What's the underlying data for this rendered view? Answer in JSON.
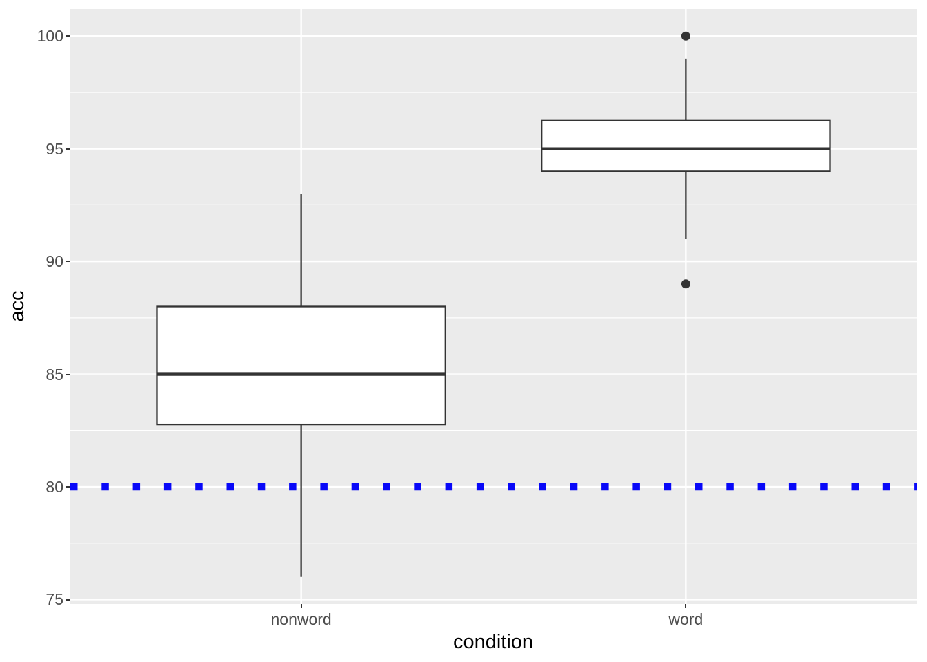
{
  "chart_data": {
    "type": "boxplot",
    "title": "",
    "xlabel": "condition",
    "ylabel": "acc",
    "categories": [
      "nonword",
      "word"
    ],
    "y_ticks": [
      75,
      80,
      85,
      90,
      95,
      100
    ],
    "y_minor_gridlines": [
      77.5,
      82.5,
      87.5,
      92.5,
      97.5
    ],
    "ylim": [
      74.8,
      101.2
    ],
    "grid": "horizontal major+minor white gridlines on gray panel, vertical major gridline at each category",
    "legend_position": "none",
    "boxes": [
      {
        "category": "nonword",
        "whisker_low": 76,
        "q1": 82.75,
        "median": 85,
        "q3": 88,
        "whisker_high": 93,
        "outliers": []
      },
      {
        "category": "word",
        "whisker_low": 91,
        "q1": 94,
        "median": 95,
        "q3": 96.25,
        "whisker_high": 99,
        "outliers": [
          89,
          100
        ]
      }
    ],
    "reference_line": {
      "y": 80,
      "linetype": "dotted",
      "color": "#0808F8"
    }
  },
  "colors": {
    "figure_background": "#FFFFFF",
    "panel_background": "#EBEBEB",
    "gridline": "#FFFFFF",
    "box_fill": "#FFFFFF",
    "box_stroke": "#333333",
    "median_stroke": "#333333",
    "whisker_stroke": "#333333",
    "outlier_fill": "#333333",
    "tick_mark": "#333333",
    "tick_text": "#4D4D4D",
    "axis_title_text": "#000000",
    "reference_line": "#0808F8"
  }
}
